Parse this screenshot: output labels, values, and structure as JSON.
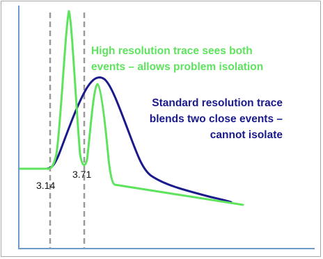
{
  "annotations": {
    "high_res": [
      "High resolution trace sees both",
      "events – allows problem isolation"
    ],
    "standard_res": [
      "Standard resolution trace",
      "blends two close events –",
      "cannot isolate"
    ]
  },
  "markers": {
    "first": "3.14",
    "second": "3.71"
  },
  "colors": {
    "high_res_trace": "#5ee35e",
    "standard_res_trace": "#1a1a8c",
    "axes": "#6c9bc9",
    "dashed_markers": "#9a9a9a"
  }
}
